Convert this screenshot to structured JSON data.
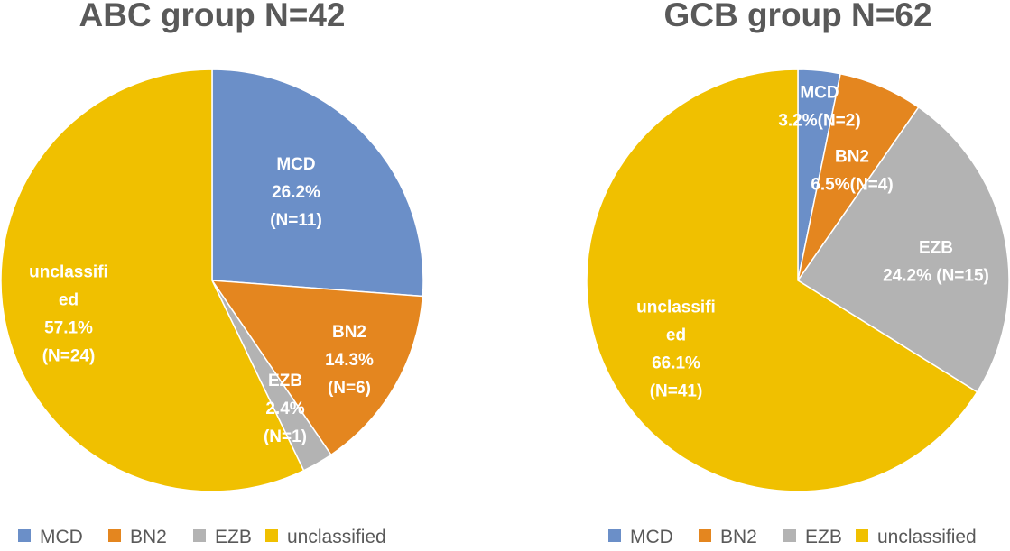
{
  "chart_data": [
    {
      "type": "pie",
      "title": "ABC group N=42",
      "categories": [
        "MCD",
        "BN2",
        "EZB",
        "unclassified"
      ],
      "values": [
        11,
        6,
        1,
        24
      ],
      "percent_labels": [
        "26.2%",
        "14.3%",
        "2.4%",
        "57.1%"
      ],
      "count_labels": [
        "(N=11)",
        "(N=6)",
        "(N=1)",
        "(N=24)"
      ],
      "slice_label_lines": [
        [
          "MCD",
          "26.2%",
          "(N=11)"
        ],
        [
          "BN2",
          "14.3%",
          "(N=6)"
        ],
        [
          "EZB",
          "2.4%",
          "(N=1)"
        ],
        [
          "unclassifi",
          "ed",
          "57.1%",
          "(N=24)"
        ]
      ],
      "colors": [
        "#6b8fc8",
        "#e4861f",
        "#b3b3b3",
        "#f0c000"
      ],
      "legend": [
        "MCD",
        "BN2",
        "EZB",
        "unclassified"
      ],
      "legend_position": "bottom",
      "start_angle_deg": 0,
      "direction": "clockwise"
    },
    {
      "type": "pie",
      "title": "GCB group N=62",
      "categories": [
        "MCD",
        "BN2",
        "EZB",
        "unclassified"
      ],
      "values": [
        2,
        4,
        15,
        41
      ],
      "percent_labels": [
        "3.2%",
        "6.5%",
        "24.2%",
        "66.1%"
      ],
      "count_labels": [
        "(N=2)",
        "(N=4)",
        "(N=15)",
        "(N=41)"
      ],
      "slice_label_lines": [
        [
          "MCD",
          "3.2%(N=2)"
        ],
        [
          "BN2",
          "6.5%(N=4)"
        ],
        [
          "EZB",
          "24.2% (N=15)"
        ],
        [
          "unclassifi",
          "ed",
          "66.1%",
          "(N=41)"
        ]
      ],
      "colors": [
        "#6b8fc8",
        "#e4861f",
        "#b3b3b3",
        "#f0c000"
      ],
      "legend": [
        "MCD",
        "BN2",
        "EZB",
        "unclassified"
      ],
      "legend_position": "bottom",
      "start_angle_deg": 0,
      "direction": "clockwise"
    }
  ]
}
